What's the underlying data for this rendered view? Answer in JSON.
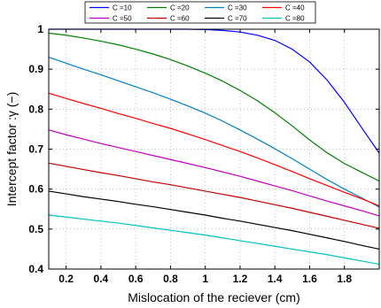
{
  "chart_data": {
    "type": "line",
    "xlabel": "Mislocation of the reciever (cm)",
    "ylabel": "Intercept factor :γ (−)",
    "xlim": [
      0.1,
      2.0
    ],
    "ylim": [
      0.4,
      1.0
    ],
    "grid": true,
    "legend_position": "top, above plot, 4 columns",
    "xticks": [
      0.2,
      0.4,
      0.6,
      0.8,
      1,
      1.2,
      1.4,
      1.6,
      1.8
    ],
    "xtick_labels": [
      "0.2",
      "0.4",
      "0.6",
      "0.8",
      "1",
      "1.2",
      "1.4",
      "1.6",
      "1.8"
    ],
    "yticks": [
      0.4,
      0.5,
      0.6,
      0.7,
      0.8,
      0.9,
      1
    ],
    "ytick_labels": [
      "0.4",
      "0.5",
      "0.6",
      "0.7",
      "0.8",
      "0.9",
      "1"
    ],
    "x": [
      0.1,
      0.2,
      0.3,
      0.4,
      0.5,
      0.6,
      0.7,
      0.8,
      0.9,
      1.0,
      1.1,
      1.2,
      1.3,
      1.4,
      1.5,
      1.6,
      1.7,
      1.8,
      1.9,
      2.0
    ],
    "series": [
      {
        "name": "C =10",
        "color": "#0000ff",
        "values": [
          1.0,
          1.0,
          1.0,
          1.0,
          1.0,
          1.0,
          1.0,
          1.0,
          1.0,
          0.999,
          0.997,
          0.993,
          0.985,
          0.972,
          0.95,
          0.918,
          0.873,
          0.817,
          0.753,
          0.69
        ]
      },
      {
        "name": "C =20",
        "color": "#008000",
        "values": [
          0.99,
          0.985,
          0.978,
          0.97,
          0.961,
          0.95,
          0.938,
          0.924,
          0.908,
          0.89,
          0.87,
          0.847,
          0.821,
          0.791,
          0.758,
          0.723,
          0.691,
          0.664,
          0.642,
          0.62
        ]
      },
      {
        "name": "C =30",
        "color": "#0080c0",
        "values": [
          0.93,
          0.915,
          0.9,
          0.886,
          0.871,
          0.856,
          0.841,
          0.825,
          0.808,
          0.79,
          0.77,
          0.748,
          0.725,
          0.701,
          0.676,
          0.65,
          0.624,
          0.6,
          0.578,
          0.555
        ]
      },
      {
        "name": "C =40",
        "color": "#ff0000",
        "values": [
          0.84,
          0.827,
          0.814,
          0.802,
          0.789,
          0.777,
          0.764,
          0.752,
          0.738,
          0.724,
          0.709,
          0.694,
          0.678,
          0.661,
          0.644,
          0.626,
          0.609,
          0.592,
          0.576,
          0.558
        ]
      },
      {
        "name": "C =50",
        "color": "#c000c0",
        "values": [
          0.748,
          0.736,
          0.725,
          0.714,
          0.704,
          0.694,
          0.684,
          0.674,
          0.664,
          0.654,
          0.643,
          0.632,
          0.62,
          0.608,
          0.596,
          0.583,
          0.57,
          0.558,
          0.546,
          0.533
        ]
      },
      {
        "name": "C =60",
        "color": "#c00000",
        "values": [
          0.665,
          0.657,
          0.649,
          0.641,
          0.634,
          0.626,
          0.618,
          0.611,
          0.603,
          0.595,
          0.587,
          0.579,
          0.57,
          0.561,
          0.552,
          0.542,
          0.532,
          0.522,
          0.512,
          0.502
        ]
      },
      {
        "name": "C =70",
        "color": "#000000",
        "values": [
          0.595,
          0.588,
          0.581,
          0.575,
          0.569,
          0.562,
          0.556,
          0.549,
          0.542,
          0.535,
          0.527,
          0.52,
          0.512,
          0.504,
          0.496,
          0.487,
          0.478,
          0.469,
          0.459,
          0.45
        ]
      },
      {
        "name": "C =80",
        "color": "#00c0c0",
        "values": [
          0.535,
          0.53,
          0.525,
          0.52,
          0.515,
          0.509,
          0.503,
          0.497,
          0.491,
          0.485,
          0.478,
          0.471,
          0.464,
          0.457,
          0.45,
          0.443,
          0.436,
          0.428,
          0.42,
          0.412
        ]
      }
    ]
  }
}
